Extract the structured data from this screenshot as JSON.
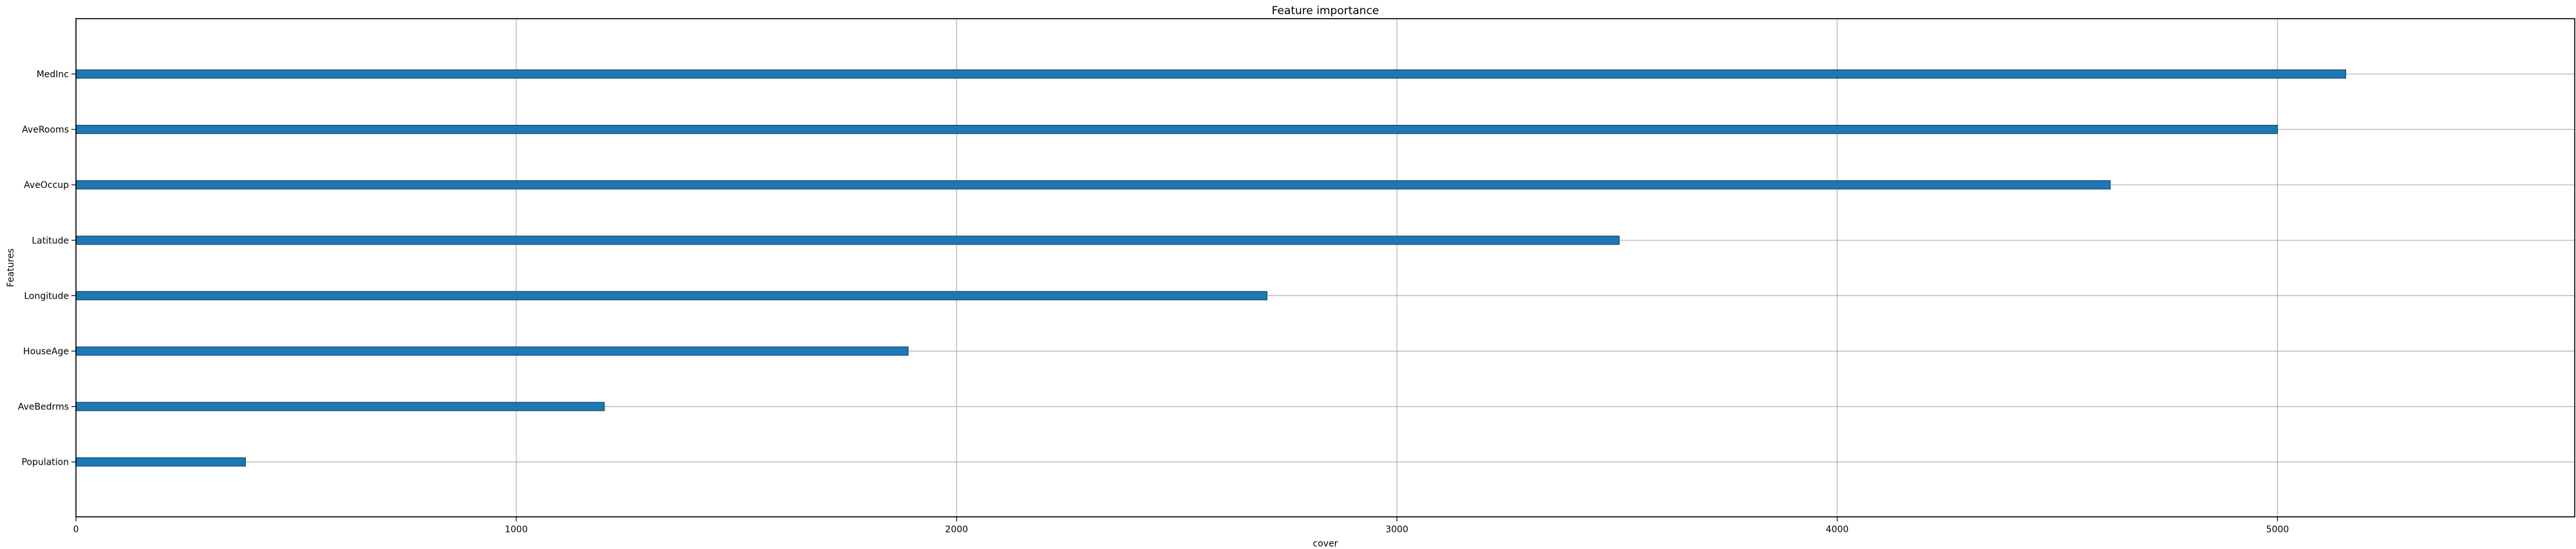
{
  "chart_data": {
    "type": "bar",
    "orientation": "horizontal",
    "title": "Feature importance",
    "xlabel": "cover",
    "ylabel": "Features",
    "xlim": [
      0,
      5675
    ],
    "xticks": [
      0,
      1000,
      2000,
      3000,
      4000,
      5000
    ],
    "grid": true,
    "categories": [
      "MedInc",
      "AveRooms",
      "AveOccup",
      "Latitude",
      "Longitude",
      "HouseAge",
      "AveBedrms",
      "Population"
    ],
    "values": [
      5155,
      5000,
      4620,
      3505,
      2705,
      1890,
      1200,
      385
    ],
    "colors": {
      "bar": "#1f77b4",
      "bar_edge": "#0b4a78",
      "grid": "#b0b0b0",
      "axes": "#000000"
    }
  }
}
